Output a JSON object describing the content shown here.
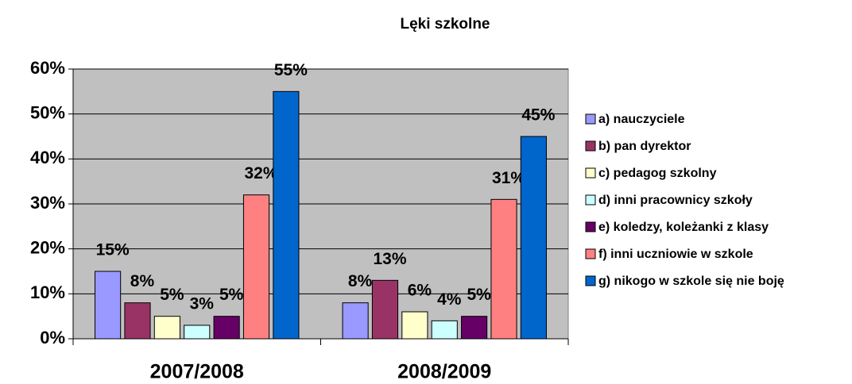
{
  "chart_data": {
    "type": "bar",
    "title": "Lęki szkolne",
    "categories": [
      "2007/2008",
      "2008/2009"
    ],
    "series": [
      {
        "name": "a) nauczyciele",
        "color": "#9999ff",
        "values": [
          15,
          8
        ],
        "value_labels": [
          "15%",
          "8%"
        ]
      },
      {
        "name": "b) pan dyrektor",
        "color": "#993366",
        "values": [
          8,
          13
        ],
        "value_labels": [
          "8%",
          "13%"
        ]
      },
      {
        "name": "c) pedagog szkolny",
        "color": "#ffffcc",
        "values": [
          5,
          6
        ],
        "value_labels": [
          "5%",
          "6%"
        ]
      },
      {
        "name": "d) inni pracownicy szkoły",
        "color": "#ccffff",
        "values": [
          3,
          4
        ],
        "value_labels": [
          "3%",
          "4%"
        ]
      },
      {
        "name": "e) koledzy, koleżanki z klasy",
        "color": "#660066",
        "values": [
          5,
          5
        ],
        "value_labels": [
          "5%",
          "5%"
        ]
      },
      {
        "name": "f) inni uczniowie w szkole",
        "color": "#ff8080",
        "values": [
          32,
          31
        ],
        "value_labels": [
          "32%",
          "31%"
        ]
      },
      {
        "name": "g) nikogo w szkole się nie boję",
        "color": "#0066cc",
        "values": [
          55,
          45
        ],
        "value_labels": [
          "55%",
          "45%"
        ]
      }
    ],
    "ylim": [
      0,
      60
    ],
    "yticks": [
      {
        "value": 0,
        "label": "0%"
      },
      {
        "value": 10,
        "label": "10%"
      },
      {
        "value": 20,
        "label": "20%"
      },
      {
        "value": 30,
        "label": "30%"
      },
      {
        "value": 40,
        "label": "40%"
      },
      {
        "value": 50,
        "label": "50%"
      },
      {
        "value": 60,
        "label": "60%"
      }
    ],
    "grid": true,
    "plot_background": "#c0c0c0",
    "legend": "right"
  }
}
